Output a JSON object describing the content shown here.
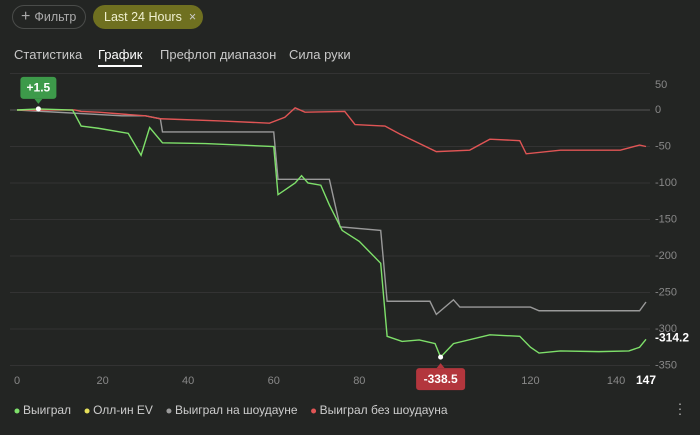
{
  "ui": {
    "filter_button": "Фильтр",
    "date_chip": "Last 24 Hours",
    "tabs": [
      "Статистика",
      "График",
      "Префлоп диапазон",
      "Сила руки"
    ],
    "active_tab": 1
  },
  "chart_data": {
    "type": "line",
    "xlim": [
      0,
      147
    ],
    "xticks": [
      0,
      20,
      40,
      60,
      80,
      100,
      120,
      140,
      147
    ],
    "ylim": [
      -350,
      50
    ],
    "yticks": [
      50,
      0,
      -50,
      -100,
      -150,
      -200,
      -250,
      -300,
      -350
    ],
    "grid": true,
    "series": [
      {
        "name": "Выиграл",
        "color": "#7ee06a",
        "x": [
          0,
          5,
          13,
          15,
          19,
          26,
          29,
          31,
          34,
          44,
          60,
          61,
          63,
          65,
          66.5,
          68,
          71,
          73,
          76,
          80,
          85,
          86.5,
          90,
          94,
          97.7,
          99,
          102,
          110.5,
          117.5,
          120,
          122,
          127,
          136,
          143,
          145.5,
          147
        ],
        "values": [
          0,
          1.5,
          0,
          -22,
          -25,
          -32,
          -62,
          -24,
          -45,
          -46,
          -50,
          -116,
          -108,
          -100,
          -90,
          -100,
          -103,
          -130,
          -165,
          -180,
          -210,
          -310,
          -317,
          -315,
          -320,
          -338.5,
          -320,
          -308,
          -310,
          -325,
          -333,
          -330,
          -331,
          -330,
          -325,
          -314.2
        ]
      },
      {
        "name": "Олл-ин EV",
        "color": "#e6e05a"
      },
      {
        "name": "Выиграл на шоудауне",
        "color": "#9a9a9a",
        "x": [
          0,
          24.5,
          30,
          33.5,
          34,
          60,
          61,
          73,
          75.5,
          85,
          86.5,
          96.5,
          98,
          100,
          102,
          103.5,
          120,
          122,
          145.5,
          147
        ],
        "values": [
          0,
          -8,
          -8,
          -12,
          -30,
          -30,
          -95,
          -95,
          -160,
          -165,
          -262,
          -262,
          -280,
          -270,
          -260,
          -270,
          -270,
          -275,
          -275,
          -263
        ]
      },
      {
        "name": "Выиграл без шоудауна",
        "color": "#e05555",
        "x": [
          0,
          13.5,
          15,
          19,
          30,
          33.5,
          47.5,
          59,
          62.6,
          65,
          67.3,
          76.6,
          79,
          86,
          89.5,
          98,
          105.8,
          110.5,
          117.5,
          119,
          127,
          141,
          145.5,
          147
        ],
        "values": [
          0,
          0,
          -2,
          -3,
          -8,
          -12,
          -15,
          -18,
          -10,
          3,
          -3,
          -2,
          -20,
          -22,
          -33,
          -57,
          -55,
          -40,
          -42,
          -60,
          -55,
          -55,
          -48,
          -50
        ]
      }
    ],
    "annotations": [
      {
        "series": 0,
        "x": 5,
        "y": 1.5,
        "label": "+1.5"
      },
      {
        "series": 0,
        "x": 99,
        "y": -338.5,
        "label": "-338.5"
      },
      {
        "series": 0,
        "x": 147,
        "y": -314.2,
        "label": "-314.2"
      }
    ]
  }
}
